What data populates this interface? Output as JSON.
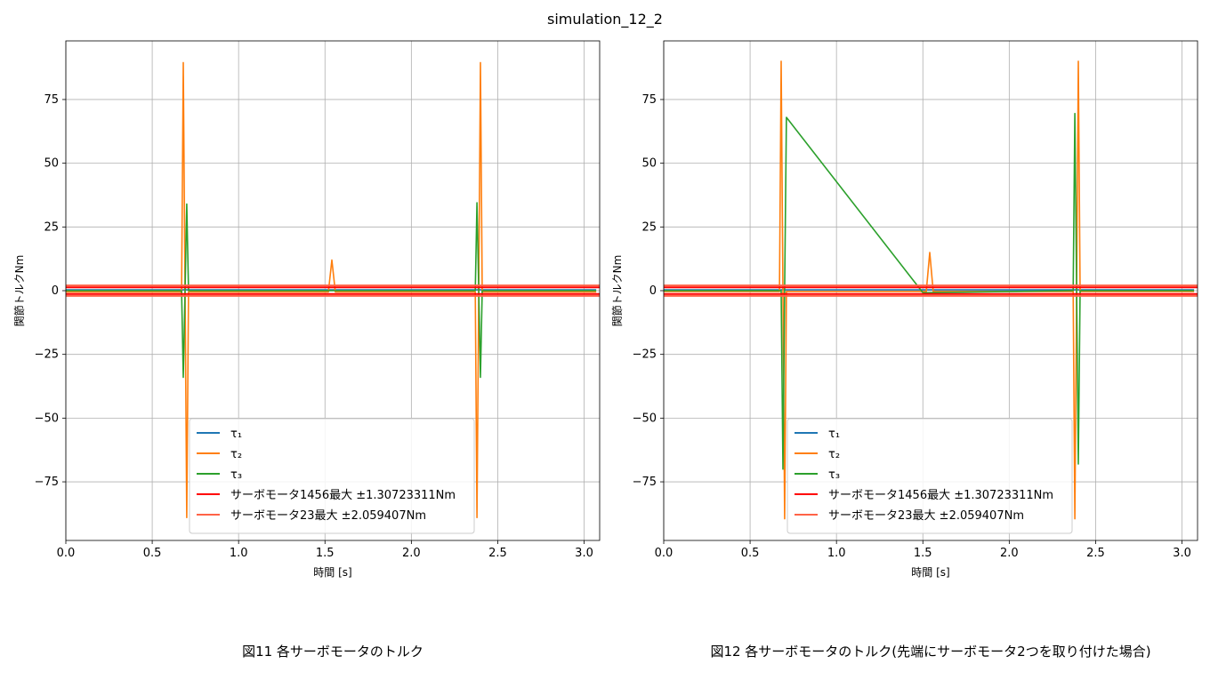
{
  "figure": {
    "suptitle": "simulation_12_2",
    "captions": [
      "図11 各サーボモータのトルク",
      "図12 各サーボモータのトルク(先端にサーボモータ2つを取り付けた場合)"
    ]
  },
  "chart_data": [
    {
      "type": "line",
      "xlabel": "時間 [s]",
      "ylabel": "関節トルクNm",
      "xlim": [
        0.0,
        3.09
      ],
      "ylim": [
        -98,
        98
      ],
      "xticks": [
        0.0,
        0.5,
        1.0,
        1.5,
        2.0,
        2.5,
        3.0
      ],
      "xtick_labels": [
        "0.0",
        "0.5",
        "1.0",
        "1.5",
        "2.0",
        "2.5",
        "3.0"
      ],
      "yticks": [
        -75,
        -50,
        -25,
        0,
        25,
        50,
        75
      ],
      "ytick_labels": [
        "−75",
        "−50",
        "−25",
        "0",
        "25",
        "50",
        "75"
      ],
      "grid": true,
      "legend_position": "lower center",
      "series": [
        {
          "name": "τ₁",
          "color": "#1f77b4",
          "x": [
            0.0,
            0.68,
            0.69,
            0.7,
            1.54,
            2.38,
            2.39,
            2.4,
            3.07
          ],
          "y": [
            0.3,
            0.3,
            0.5,
            0.3,
            0.3,
            0.3,
            0.5,
            0.3,
            0.3
          ]
        },
        {
          "name": "τ₂",
          "color": "#ff7f0e",
          "x": [
            0.0,
            0.67,
            0.68,
            0.69,
            0.7,
            0.71,
            1.52,
            1.54,
            1.56,
            2.37,
            2.38,
            2.39,
            2.4,
            2.41,
            3.07
          ],
          "y": [
            -0.5,
            -0.5,
            89.5,
            0.0,
            -89.0,
            -0.5,
            -0.5,
            12.0,
            -0.5,
            -0.5,
            -89.0,
            0.0,
            89.5,
            -0.5,
            -0.5
          ]
        },
        {
          "name": "τ₃",
          "color": "#2ca02c",
          "x": [
            0.0,
            0.67,
            0.68,
            0.69,
            0.7,
            0.71,
            2.37,
            2.38,
            2.39,
            2.4,
            2.41,
            3.07
          ],
          "y": [
            0.0,
            0.0,
            -34.0,
            0.0,
            34.0,
            0.0,
            0.0,
            34.5,
            0.0,
            -34.0,
            0.0,
            0.0
          ]
        }
      ],
      "hlines": [
        {
          "name": "サーボモータ1456最大 ±1.30723311Nm",
          "color": "#ff0000",
          "values": [
            1.30723311,
            -1.30723311
          ]
        },
        {
          "name": "サーボモータ23最大 ±2.059407Nm",
          "color": "#ff6347",
          "values": [
            2.059407,
            -2.059407
          ]
        }
      ]
    },
    {
      "type": "line",
      "xlabel": "時間 [s]",
      "ylabel": "関節トルクNm",
      "xlim": [
        0.0,
        3.09
      ],
      "ylim": [
        -98,
        98
      ],
      "xticks": [
        0.0,
        0.5,
        1.0,
        1.5,
        2.0,
        2.5,
        3.0
      ],
      "xtick_labels": [
        "0.0",
        "0.5",
        "1.0",
        "1.5",
        "2.0",
        "2.5",
        "3.0"
      ],
      "yticks": [
        -75,
        -50,
        -25,
        0,
        25,
        50,
        75
      ],
      "ytick_labels": [
        "−75",
        "−50",
        "−25",
        "0",
        "25",
        "50",
        "75"
      ],
      "grid": true,
      "legend_position": "lower center",
      "series": [
        {
          "name": "τ₁",
          "color": "#1f77b4",
          "x": [
            0.0,
            0.68,
            0.69,
            0.7,
            1.54,
            2.38,
            2.39,
            2.4,
            3.07
          ],
          "y": [
            0.3,
            0.3,
            0.5,
            0.3,
            0.3,
            0.3,
            0.5,
            0.3,
            0.3
          ]
        },
        {
          "name": "τ₂",
          "color": "#ff7f0e",
          "x": [
            0.0,
            0.67,
            0.68,
            0.69,
            0.7,
            0.71,
            1.52,
            1.54,
            1.56,
            2.37,
            2.38,
            2.39,
            2.4,
            2.41,
            3.07
          ],
          "y": [
            -0.3,
            -0.3,
            90.0,
            0.0,
            -89.5,
            -0.3,
            -0.3,
            15.0,
            -0.3,
            -0.3,
            -89.5,
            0.0,
            90.0,
            -0.3,
            -0.3
          ]
        },
        {
          "name": "τ₃",
          "color": "#2ca02c",
          "x": [
            0.0,
            0.68,
            0.69,
            0.7,
            0.71,
            1.5,
            2.36,
            2.37,
            2.38,
            2.39,
            2.4,
            2.41,
            3.07
          ],
          "y": [
            0.0,
            0.0,
            -70.0,
            0.0,
            68.0,
            -0.8,
            0.0,
            0.0,
            69.5,
            0.0,
            -68.0,
            0.0,
            0.0
          ]
        }
      ],
      "hlines": [
        {
          "name": "サーボモータ1456最大 ±1.30723311Nm",
          "color": "#ff0000",
          "values": [
            1.30723311,
            -1.30723311
          ]
        },
        {
          "name": "サーボモータ23最大 ±2.059407Nm",
          "color": "#ff6347",
          "values": [
            2.059407,
            -2.059407
          ]
        }
      ]
    }
  ]
}
